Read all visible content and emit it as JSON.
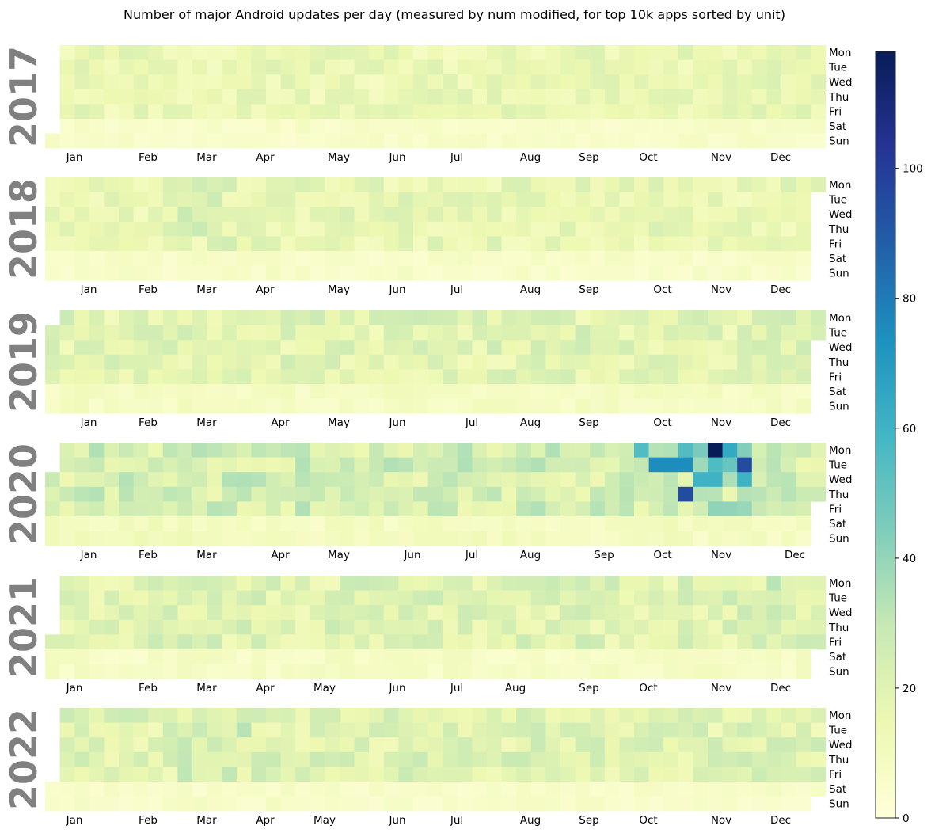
{
  "chart_data": {
    "type": "heatmap",
    "title": "Number of major Android updates per day (measured by num modified, for top 10k apps sorted by unit)",
    "weekday_labels": [
      "Mon",
      "Tue",
      "Wed",
      "Thu",
      "Fri",
      "Sat",
      "Sun"
    ],
    "colormap": "YlGnBu",
    "colormap_stops": [
      "#ffffd9",
      "#edf8b1",
      "#c7e9b4",
      "#7fcdbb",
      "#41b6c4",
      "#1d91c0",
      "#225ea8",
      "#253494",
      "#081d58"
    ],
    "colorbar": {
      "vmin": 0,
      "vmax": 118,
      "ticks": [
        0,
        20,
        40,
        60,
        80,
        100
      ]
    },
    "years": [
      {
        "year": "2017",
        "month_ticks": [
          "Jan",
          "Feb",
          "Mar",
          "Apr",
          "May",
          "Jun",
          "Jul",
          "Aug",
          "Sep",
          "Oct",
          "Nov",
          "Dec"
        ],
        "typical_weekday_updates": 15,
        "typical_weekend_updates": 6,
        "peak_updates": 24,
        "peak_month": "Dec"
      },
      {
        "year": "2018",
        "month_ticks": [
          "Jan",
          "Feb",
          "Mar",
          "Apr",
          "May",
          "Jun",
          "Jul",
          "Aug",
          "Sep",
          "Oct",
          "Nov",
          "Dec"
        ],
        "typical_weekday_updates": 16,
        "typical_weekend_updates": 6,
        "peak_updates": 38,
        "peak_month": "Mar"
      },
      {
        "year": "2019",
        "month_ticks": [
          "Jan",
          "Feb",
          "Mar",
          "Apr",
          "May",
          "Jun",
          "Jul",
          "Aug",
          "Sep",
          "Oct",
          "Nov",
          "Dec"
        ],
        "typical_weekday_updates": 19,
        "typical_weekend_updates": 8,
        "peak_updates": 32,
        "peak_month": "Dec"
      },
      {
        "year": "2020",
        "month_ticks": [
          "Jan",
          "Feb",
          "Mar",
          "Apr",
          "May",
          "Jun",
          "Jul",
          "Aug",
          "Sep",
          "Oct",
          "Nov",
          "Dec"
        ],
        "typical_weekday_updates": 24,
        "typical_weekend_updates": 9,
        "peak_updates": 118,
        "peak_month": "Nov",
        "notable_values": [
          {
            "month": "Oct",
            "weekday": "Mon",
            "value": 55
          },
          {
            "month": "Oct",
            "weekday": "Tue",
            "value": 75
          },
          {
            "month": "Oct",
            "weekday": "Thu",
            "value": 95
          },
          {
            "month": "Nov",
            "weekday": "Mon",
            "value": 118
          },
          {
            "month": "Nov",
            "weekday": "Tue",
            "value": 95
          },
          {
            "month": "Nov",
            "weekday": "Wed",
            "value": 60
          }
        ]
      },
      {
        "year": "2021",
        "month_ticks": [
          "Jan",
          "Feb",
          "Mar",
          "Apr",
          "May",
          "Jun",
          "Jul",
          "Aug",
          "Sep",
          "Oct",
          "Nov",
          "Dec"
        ],
        "typical_weekday_updates": 20,
        "typical_weekend_updates": 7,
        "peak_updates": 36,
        "peak_month": "Dec"
      },
      {
        "year": "2022",
        "month_ticks": [
          "Jan",
          "Feb",
          "Mar",
          "Apr",
          "May",
          "Jun",
          "Jul",
          "Aug",
          "Sep",
          "Oct",
          "Nov",
          "Dec"
        ],
        "typical_weekday_updates": 20,
        "typical_weekend_updates": 6,
        "peak_updates": 34,
        "peak_month": "Mar"
      }
    ]
  }
}
